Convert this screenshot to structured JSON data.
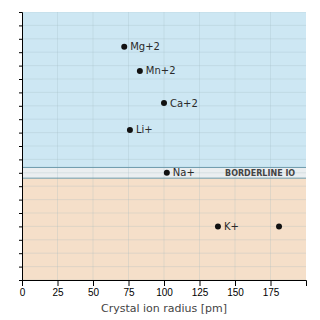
{
  "chart_data": {
    "type": "scatter",
    "xlabel": "Crystal ion radius [pm]",
    "xlim": [
      0,
      200
    ],
    "ylim": [
      0,
      10
    ],
    "xticks": [
      0,
      25,
      50,
      75,
      100,
      125,
      150,
      175
    ],
    "yticks": [
      0,
      0.5,
      1,
      1.5,
      2,
      2.5,
      3,
      3.5,
      4,
      4.5,
      5,
      5.5,
      6,
      6.5,
      7,
      7.5,
      8,
      8.5,
      9,
      9.5,
      10
    ],
    "tick_labels": "x",
    "grid": true,
    "color": "#111111",
    "x": [
      72,
      83,
      100,
      76,
      102,
      138,
      181
    ],
    "values": [
      8.7,
      7.8,
      6.6,
      5.6,
      4.0,
      2.0,
      2.0
    ],
    "labels": [
      "Mg+2",
      "Mn+2",
      "Ca+2",
      "Li+",
      "Na+",
      "K+",
      null
    ],
    "bands": [
      {
        "ymin": 0,
        "ymax": 3.8,
        "color": "#f5dfc9"
      },
      {
        "ymin": 3.8,
        "ymax": 4.2,
        "color": "#eaeef0"
      },
      {
        "ymin": 4.2,
        "ymax": 10,
        "color": "#cde7f3"
      }
    ],
    "hlines": [
      3.8,
      4.2
    ],
    "annotations": [
      {
        "text": "BORDERLINE IO",
        "x": 143,
        "y": 4.0
      }
    ]
  }
}
